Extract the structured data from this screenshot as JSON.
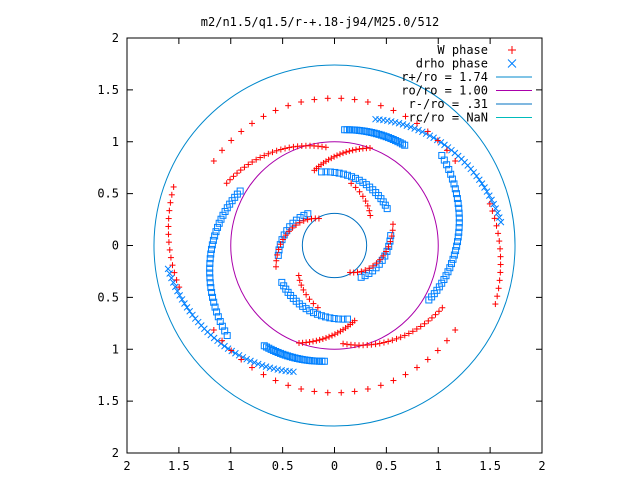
{
  "chart_data": {
    "type": "scatter",
    "title": "m2/n1.5/q1.5/r-+.18-j94/M25.0/512",
    "xlabel": "",
    "ylabel": "",
    "xlim": [
      -2,
      2
    ],
    "ylim": [
      -2,
      2
    ],
    "x_tick_labels": [
      "2",
      "1.5",
      "1",
      "0.5",
      "0",
      "0.5",
      "1",
      "1.5",
      "2"
    ],
    "y_tick_labels": [
      "2",
      "1.5",
      "1",
      "0.5",
      "0",
      "0.5",
      "1",
      "1.5",
      "2"
    ],
    "tick_values": [
      -2,
      -1.5,
      -1,
      -0.5,
      0,
      0.5,
      1,
      1.5,
      2
    ],
    "grid": false,
    "legend_position": "top-right",
    "colors": {
      "w_phase": "#ff0000",
      "drho_phase": "#0080ff",
      "r_plus": "#0088cc",
      "ro": "#aa00aa",
      "r_minus": "#0070c0",
      "rc": "#00bbbb",
      "frame": "#000000"
    },
    "circles": [
      {
        "label": "r+/ro = 1.74",
        "radius": 1.74
      },
      {
        "label": "ro/ro = 1.00",
        "radius": 1.0
      },
      {
        "label": "r-/ro = .31",
        "radius": 0.31
      },
      {
        "label": "rc/ro = NaN",
        "radius": null
      }
    ],
    "series": [
      {
        "name": "W phase",
        "marker": "+",
        "note_group": "red"
      },
      {
        "name": "drho phase",
        "marker": "x",
        "note_group": "blue"
      }
    ],
    "w_phase_arms": [
      {
        "r0": 1.42,
        "r1": 1.42,
        "a0": 35,
        "a1": 145,
        "n": 22
      },
      {
        "r0": 1.42,
        "r1": 1.42,
        "a0": 215,
        "a1": 325,
        "n": 22
      },
      {
        "r0": 0.95,
        "r1": 1.2,
        "a0": 95,
        "a1": 150,
        "n": 26
      },
      {
        "r0": 0.95,
        "r1": 1.2,
        "a0": 275,
        "a1": 330,
        "n": 26
      },
      {
        "r0": 0.75,
        "r1": 1.0,
        "a0": 105,
        "a1": 70,
        "n": 20
      },
      {
        "r0": 0.75,
        "r1": 1.0,
        "a0": 285,
        "a1": 250,
        "n": 20
      },
      {
        "r0": 1.55,
        "r1": 1.65,
        "a0": 195,
        "a1": 160,
        "n": 14
      },
      {
        "r0": 1.55,
        "r1": 1.65,
        "a0": 15,
        "a1": -20,
        "n": 14
      },
      {
        "r0": 0.3,
        "r1": 0.6,
        "a0": 120,
        "a1": 200,
        "n": 16
      },
      {
        "r0": 0.3,
        "r1": 0.6,
        "a0": 300,
        "a1": 380,
        "n": 16
      },
      {
        "r0": 0.45,
        "r1": 0.62,
        "a0": 40,
        "a1": 75,
        "n": 8
      },
      {
        "r0": 0.45,
        "r1": 0.62,
        "a0": 220,
        "a1": 255,
        "n": 8
      }
    ],
    "drho_phase_arms": [
      {
        "r0": 1.28,
        "r1": 1.62,
        "a0": 72,
        "a1": 8,
        "n": 40,
        "marker": "x"
      },
      {
        "r0": 1.28,
        "r1": 1.62,
        "a0": 252,
        "a1": 188,
        "n": 40,
        "marker": "x"
      },
      {
        "r0": 1.12,
        "r1": 1.18,
        "a0": 85,
        "a1": 55,
        "n": 26,
        "marker": "sq"
      },
      {
        "r0": 1.12,
        "r1": 1.18,
        "a0": 265,
        "a1": 235,
        "n": 26,
        "marker": "sq"
      },
      {
        "r0": 1.05,
        "r1": 1.35,
        "a0": 150,
        "a1": 220,
        "n": 34,
        "marker": "sq"
      },
      {
        "r0": 1.05,
        "r1": 1.35,
        "a0": 330,
        "a1": 400,
        "n": 34,
        "marker": "sq"
      },
      {
        "r0": 0.62,
        "r1": 0.72,
        "a0": 35,
        "a1": 100,
        "n": 20,
        "marker": "sq"
      },
      {
        "r0": 0.62,
        "r1": 0.72,
        "a0": 215,
        "a1": 280,
        "n": 20,
        "marker": "sq"
      },
      {
        "r0": 0.4,
        "r1": 0.55,
        "a0": 130,
        "a1": 190,
        "n": 12,
        "marker": "sq"
      },
      {
        "r0": 0.4,
        "r1": 0.55,
        "a0": 310,
        "a1": 370,
        "n": 12,
        "marker": "sq"
      }
    ]
  }
}
